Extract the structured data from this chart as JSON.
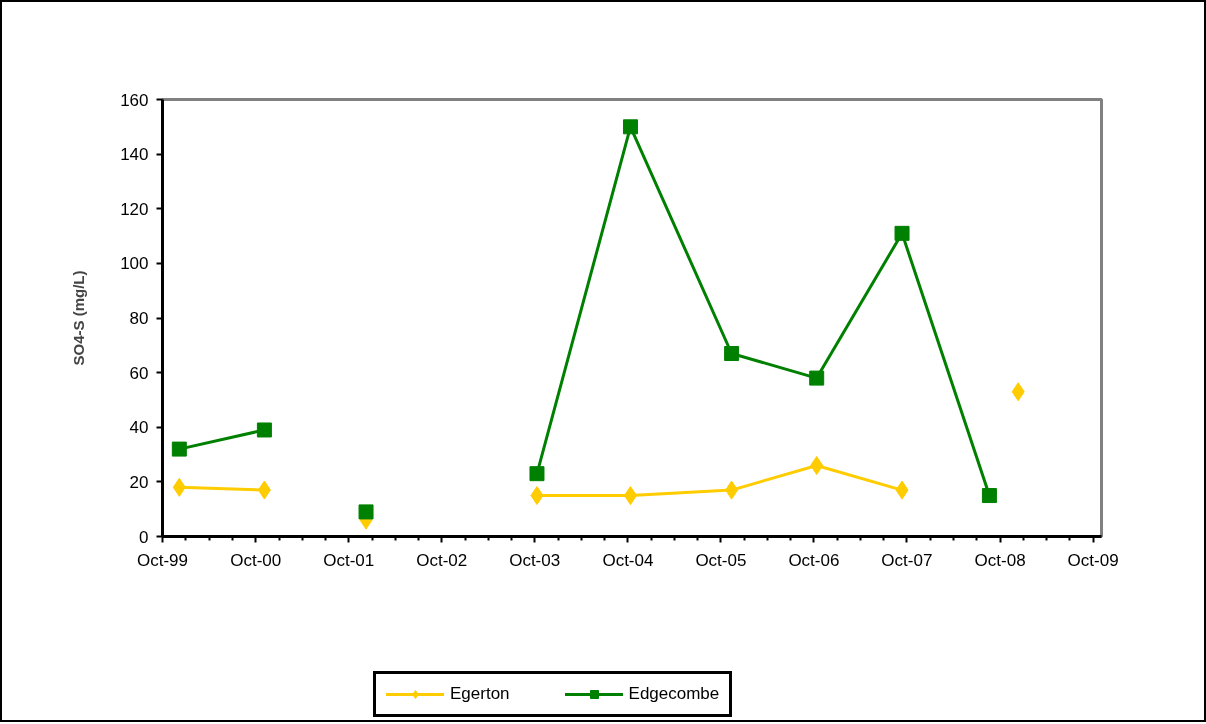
{
  "chart_data": {
    "type": "line",
    "ylabel": "SO4-S (mg/L)",
    "x": [
      "1999-12-06",
      "2000-11-04",
      null,
      "2001-12-08",
      null,
      "2003-10-10",
      "2004-10-11",
      "2005-11-12",
      "2006-10-12",
      "2007-09-12",
      "2008-08-20",
      "2008-12-11"
    ],
    "series": [
      {
        "name": "Egerton",
        "color": "#ffcc00",
        "marker": "diamond",
        "values": [
          18,
          17,
          null,
          6,
          null,
          15,
          15,
          17,
          26,
          17,
          null,
          53
        ]
      },
      {
        "name": "Edgecombe",
        "color": "#008000",
        "marker": "square",
        "values": [
          32,
          39,
          null,
          9,
          null,
          23,
          150,
          67,
          58,
          111,
          15,
          null
        ]
      }
    ],
    "xlim": [
      "1999-10-01",
      "2009-11-03"
    ],
    "xticks": [
      {
        "value": "1999-10",
        "label": "Oct-99"
      },
      {
        "value": "2000-01",
        "label": null
      },
      {
        "value": "2000-04",
        "label": null
      },
      {
        "value": "2000-07",
        "label": null
      },
      {
        "value": "2000-10",
        "label": "Oct-00"
      },
      {
        "value": "2001-01",
        "label": null
      },
      {
        "value": "2001-04",
        "label": null
      },
      {
        "value": "2001-07",
        "label": null
      },
      {
        "value": "2001-10",
        "label": "Oct-01"
      },
      {
        "value": "2002-01",
        "label": null
      },
      {
        "value": "2002-04",
        "label": null
      },
      {
        "value": "2002-07",
        "label": null
      },
      {
        "value": "2002-10",
        "label": "Oct-02"
      },
      {
        "value": "2003-01",
        "label": null
      },
      {
        "value": "2003-04",
        "label": null
      },
      {
        "value": "2003-07",
        "label": null
      },
      {
        "value": "2003-10",
        "label": "Oct-03"
      },
      {
        "value": "2004-01",
        "label": null
      },
      {
        "value": "2004-04",
        "label": null
      },
      {
        "value": "2004-07",
        "label": null
      },
      {
        "value": "2004-10",
        "label": "Oct-04"
      },
      {
        "value": "2005-01",
        "label": null
      },
      {
        "value": "2005-04",
        "label": null
      },
      {
        "value": "2005-07",
        "label": null
      },
      {
        "value": "2005-10",
        "label": "Oct-05"
      },
      {
        "value": "2006-01",
        "label": null
      },
      {
        "value": "2006-04",
        "label": null
      },
      {
        "value": "2006-07",
        "label": null
      },
      {
        "value": "2006-10",
        "label": "Oct-06"
      },
      {
        "value": "2007-01",
        "label": null
      },
      {
        "value": "2007-04",
        "label": null
      },
      {
        "value": "2007-07",
        "label": null
      },
      {
        "value": "2007-10",
        "label": "Oct-07"
      },
      {
        "value": "2008-01",
        "label": null
      },
      {
        "value": "2008-04",
        "label": null
      },
      {
        "value": "2008-07",
        "label": null
      },
      {
        "value": "2008-10",
        "label": "Oct-08"
      },
      {
        "value": "2009-01",
        "label": null
      },
      {
        "value": "2009-04",
        "label": null
      },
      {
        "value": "2009-07",
        "label": null
      },
      {
        "value": "2009-10",
        "label": "Oct-09"
      }
    ],
    "ylim": [
      0,
      160
    ],
    "yticks": [
      0,
      20,
      40,
      60,
      80,
      100,
      120,
      140,
      160
    ],
    "grid": false,
    "legend": "bottom",
    "line_style": "solid"
  }
}
